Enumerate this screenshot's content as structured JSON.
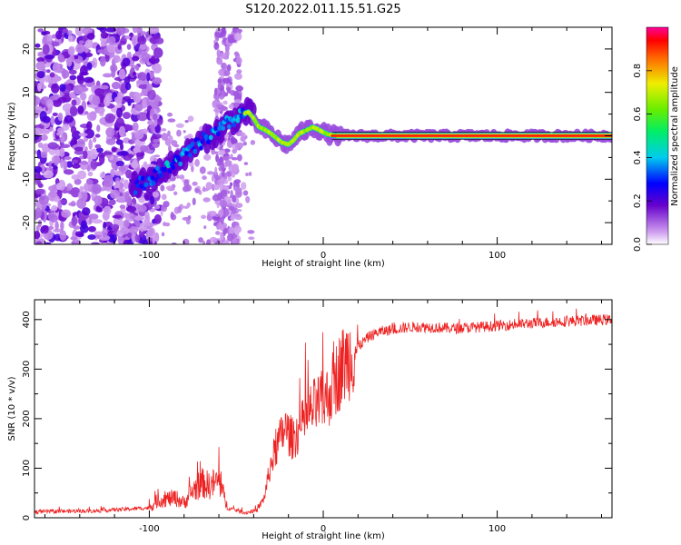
{
  "title": "S120.2022.011.15.51.G25",
  "chart_data": [
    {
      "type": "heatmap",
      "xlabel": "Height of straight line (km)",
      "ylabel": "Frequency (Hz)",
      "xlim": [
        -166,
        166
      ],
      "ylim": [
        -25,
        25
      ],
      "xticks": [
        -100,
        0,
        100
      ],
      "yticks": [
        -20,
        -10,
        0,
        10,
        20
      ],
      "colorbar": {
        "label": "Normalized spectral amplitude",
        "range": [
          0,
          1
        ],
        "ticks": [
          "0.0",
          "0.2",
          "0.4",
          "0.6",
          "0.8"
        ]
      },
      "ridge": [
        {
          "x": -105,
          "y": -11
        },
        {
          "x": -100,
          "y": -10
        },
        {
          "x": -92,
          "y": -8
        },
        {
          "x": -85,
          "y": -6
        },
        {
          "x": -78,
          "y": -4
        },
        {
          "x": -72,
          "y": -2
        },
        {
          "x": -65,
          "y": 0
        },
        {
          "x": -60,
          "y": 1
        },
        {
          "x": -55,
          "y": 3
        },
        {
          "x": -50,
          "y": 4
        },
        {
          "x": -46,
          "y": 5
        },
        {
          "x": -43,
          "y": 5.5
        },
        {
          "x": -40,
          "y": 4
        },
        {
          "x": -37,
          "y": 2
        },
        {
          "x": -34,
          "y": 1.5
        },
        {
          "x": -30,
          "y": 0.5
        },
        {
          "x": -27,
          "y": -0.5
        },
        {
          "x": -24,
          "y": -1.5
        },
        {
          "x": -20,
          "y": -2
        },
        {
          "x": -17,
          "y": -1
        },
        {
          "x": -14,
          "y": 0.5
        },
        {
          "x": -10,
          "y": 1.2
        },
        {
          "x": -6,
          "y": 2
        },
        {
          "x": -3,
          "y": 1.5
        },
        {
          "x": 0,
          "y": 0.8
        },
        {
          "x": 3,
          "y": 0.3
        },
        {
          "x": 8,
          "y": 0
        },
        {
          "x": 166,
          "y": 0
        }
      ]
    },
    {
      "type": "line",
      "xlabel": "Height of straight line (km)",
      "ylabel": "SNR (10 * v/v)",
      "xlim": [
        -166,
        166
      ],
      "ylim": [
        0,
        440
      ],
      "xticks": [
        -100,
        0,
        100
      ],
      "yticks": [
        0,
        100,
        200,
        300,
        400
      ],
      "color": "#ee2222",
      "envelope": [
        {
          "x": -166,
          "y": 12
        },
        {
          "x": -130,
          "y": 14
        },
        {
          "x": -100,
          "y": 20
        },
        {
          "x": -95,
          "y": 35
        },
        {
          "x": -85,
          "y": 40
        },
        {
          "x": -80,
          "y": 30
        },
        {
          "x": -75,
          "y": 55
        },
        {
          "x": -70,
          "y": 70
        },
        {
          "x": -65,
          "y": 65
        },
        {
          "x": -60,
          "y": 75
        },
        {
          "x": -55,
          "y": 20
        },
        {
          "x": -45,
          "y": 10
        },
        {
          "x": -38,
          "y": 15
        },
        {
          "x": -34,
          "y": 40
        },
        {
          "x": -30,
          "y": 110
        },
        {
          "x": -26,
          "y": 150
        },
        {
          "x": -22,
          "y": 180
        },
        {
          "x": -18,
          "y": 160
        },
        {
          "x": -14,
          "y": 175
        },
        {
          "x": -10,
          "y": 200
        },
        {
          "x": -6,
          "y": 220
        },
        {
          "x": -2,
          "y": 230
        },
        {
          "x": 2,
          "y": 240
        },
        {
          "x": 6,
          "y": 270
        },
        {
          "x": 10,
          "y": 300
        },
        {
          "x": 14,
          "y": 320
        },
        {
          "x": 20,
          "y": 345
        },
        {
          "x": 26,
          "y": 365
        },
        {
          "x": 32,
          "y": 375
        },
        {
          "x": 40,
          "y": 380
        },
        {
          "x": 50,
          "y": 385
        },
        {
          "x": 60,
          "y": 385
        },
        {
          "x": 75,
          "y": 382
        },
        {
          "x": 90,
          "y": 385
        },
        {
          "x": 110,
          "y": 390
        },
        {
          "x": 130,
          "y": 395
        },
        {
          "x": 150,
          "y": 398
        },
        {
          "x": 166,
          "y": 400
        }
      ]
    }
  ]
}
